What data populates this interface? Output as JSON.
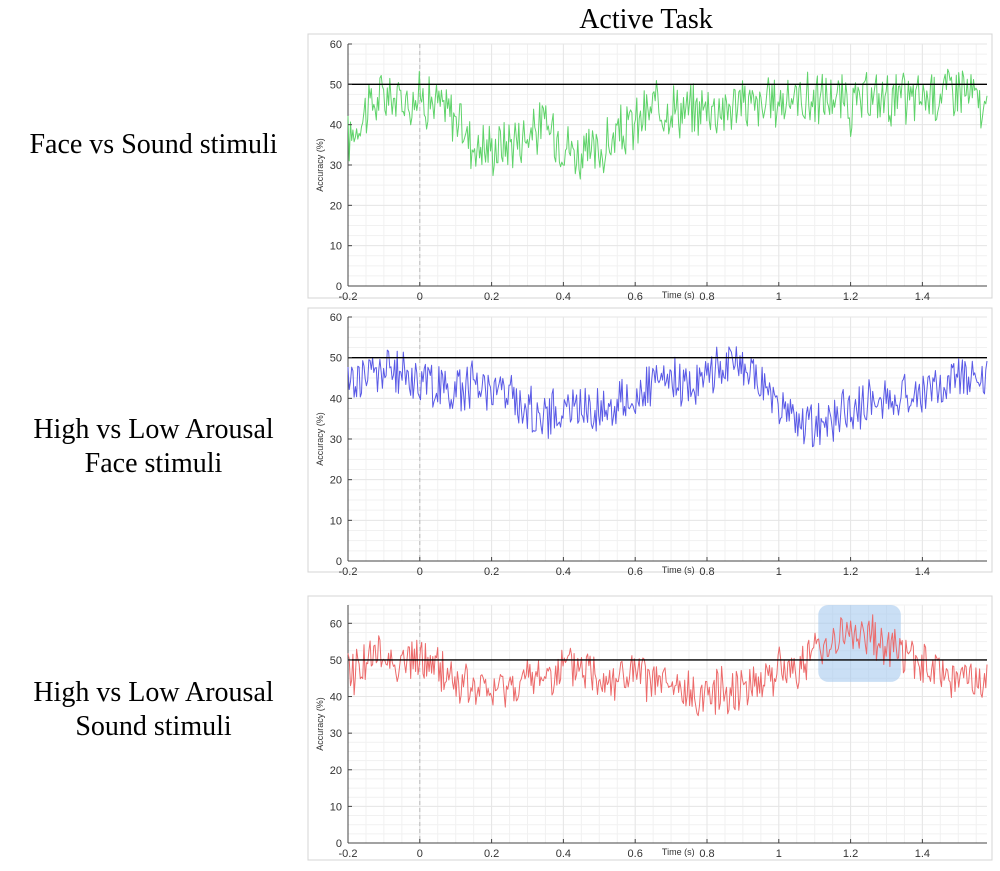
{
  "figure_title": "Active Task",
  "row_labels": [
    [
      "Face vs Sound stimuli"
    ],
    [
      "High vs Low Arousal",
      "Face stimuli"
    ],
    [
      "High vs Low Arousal",
      "Sound stimuli"
    ]
  ],
  "colors": {
    "series": [
      "#5fd36a",
      "#5a5ae6",
      "#ec6a6a"
    ],
    "threshold": "#000000",
    "highlight": "#9ec4ec",
    "zero_line": "#bbbbbb",
    "grid": "#e6e6e6"
  },
  "chart_data": [
    {
      "type": "line",
      "title": "",
      "xlabel": "Time (s)",
      "ylabel": "Accuracy (%)",
      "xlim": [
        -0.2,
        1.58
      ],
      "ylim": [
        0,
        60
      ],
      "xticks": [
        -0.2,
        0,
        0.2,
        0.4,
        0.6,
        0.8,
        1,
        1.2,
        1.4
      ],
      "xtick_labels": [
        "-0.2",
        "0",
        "0.2",
        "0.4",
        "0.6",
        "0.8",
        "1",
        "1.2",
        "1.4"
      ],
      "yticks": [
        0,
        10,
        20,
        30,
        40,
        50,
        60
      ],
      "ytick_labels": [
        "0",
        "10",
        "20",
        "30",
        "40",
        "50",
        "60"
      ],
      "grid": true,
      "chance_level": 50,
      "zero_marker": 0,
      "series": [
        {
          "x": [
            -0.2,
            -0.15,
            -0.1,
            -0.05,
            0.0,
            0.05,
            0.1,
            0.15,
            0.2,
            0.25,
            0.3,
            0.35,
            0.4,
            0.45,
            0.5,
            0.55,
            0.6,
            0.65,
            0.7,
            0.75,
            0.8,
            0.85,
            0.9,
            0.95,
            1.0,
            1.05,
            1.1,
            1.15,
            1.2,
            1.25,
            1.3,
            1.35,
            1.4,
            1.45,
            1.5,
            1.55,
            1.58
          ],
          "y": [
            36,
            44,
            47,
            46,
            47,
            45,
            42,
            35,
            34,
            36,
            38,
            40,
            36,
            32,
            33,
            37,
            40,
            44,
            45,
            43,
            45,
            44,
            46,
            44,
            46,
            47,
            46,
            47,
            44,
            46,
            47,
            46,
            47,
            48,
            50,
            46,
            41
          ],
          "variation": 6,
          "min_y": 22,
          "max_y": 64
        }
      ]
    },
    {
      "type": "line",
      "title": "",
      "xlabel": "Time (s)",
      "ylabel": "Accuracy (%)",
      "xlim": [
        -0.2,
        1.58
      ],
      "ylim": [
        0,
        60
      ],
      "xticks": [
        -0.2,
        0,
        0.2,
        0.4,
        0.6,
        0.8,
        1,
        1.2,
        1.4
      ],
      "xtick_labels": [
        "-0.2",
        "0",
        "0.2",
        "0.4",
        "0.6",
        "0.8",
        "1",
        "1.2",
        "1.4"
      ],
      "yticks": [
        0,
        10,
        20,
        30,
        40,
        50,
        60
      ],
      "ytick_labels": [
        "0",
        "10",
        "20",
        "30",
        "40",
        "50",
        "60"
      ],
      "grid": true,
      "chance_level": 50,
      "zero_marker": 0,
      "series": [
        {
          "x": [
            -0.2,
            -0.15,
            -0.1,
            -0.05,
            0.0,
            0.05,
            0.1,
            0.15,
            0.2,
            0.25,
            0.3,
            0.35,
            0.4,
            0.45,
            0.5,
            0.55,
            0.6,
            0.65,
            0.7,
            0.75,
            0.8,
            0.85,
            0.9,
            0.95,
            1.0,
            1.05,
            1.1,
            1.15,
            1.2,
            1.25,
            1.3,
            1.35,
            1.4,
            1.45,
            1.5,
            1.55,
            1.58
          ],
          "y": [
            44,
            46,
            47,
            46,
            45,
            43,
            42,
            44,
            43,
            41,
            37,
            36,
            37,
            38,
            37,
            39,
            40,
            43,
            44,
            43,
            46,
            49,
            47,
            44,
            38,
            34,
            33,
            35,
            37,
            39,
            40,
            41,
            41,
            43,
            46,
            47,
            44
          ],
          "variation": 5,
          "min_y": 25,
          "max_y": 57
        }
      ]
    },
    {
      "type": "line",
      "title": "",
      "xlabel": "Time (s)",
      "ylabel": "Accuracy (%)",
      "xlim": [
        -0.2,
        1.58
      ],
      "ylim": [
        0,
        65
      ],
      "xticks": [
        -0.2,
        0,
        0.2,
        0.4,
        0.6,
        0.8,
        1,
        1.2,
        1.4
      ],
      "xtick_labels": [
        "-0.2",
        "0",
        "0.2",
        "0.4",
        "0.6",
        "0.8",
        "1",
        "1.2",
        "1.4"
      ],
      "yticks": [
        0,
        10,
        20,
        30,
        40,
        50,
        60
      ],
      "ytick_labels": [
        "0",
        "10",
        "20",
        "30",
        "40",
        "50",
        "60"
      ],
      "grid": true,
      "chance_level": 50,
      "zero_marker": 0,
      "highlight": {
        "x": [
          1.11,
          1.34
        ],
        "y": [
          44,
          65
        ]
      },
      "series": [
        {
          "x": [
            -0.2,
            -0.15,
            -0.1,
            -0.05,
            0.0,
            0.05,
            0.1,
            0.15,
            0.2,
            0.25,
            0.3,
            0.35,
            0.4,
            0.45,
            0.5,
            0.55,
            0.6,
            0.65,
            0.7,
            0.75,
            0.8,
            0.85,
            0.9,
            0.95,
            1.0,
            1.05,
            1.1,
            1.15,
            1.2,
            1.25,
            1.3,
            1.35,
            1.4,
            1.45,
            1.5,
            1.55,
            1.58
          ],
          "y": [
            46,
            50,
            51,
            49,
            50,
            48,
            44,
            42,
            41,
            43,
            44,
            46,
            47,
            48,
            46,
            45,
            46,
            44,
            42,
            40,
            41,
            42,
            43,
            45,
            47,
            48,
            52,
            56,
            57,
            56,
            55,
            52,
            48,
            46,
            45,
            44,
            43
          ],
          "variation": 5.5,
          "min_y": 27,
          "max_y": 64
        }
      ]
    }
  ]
}
